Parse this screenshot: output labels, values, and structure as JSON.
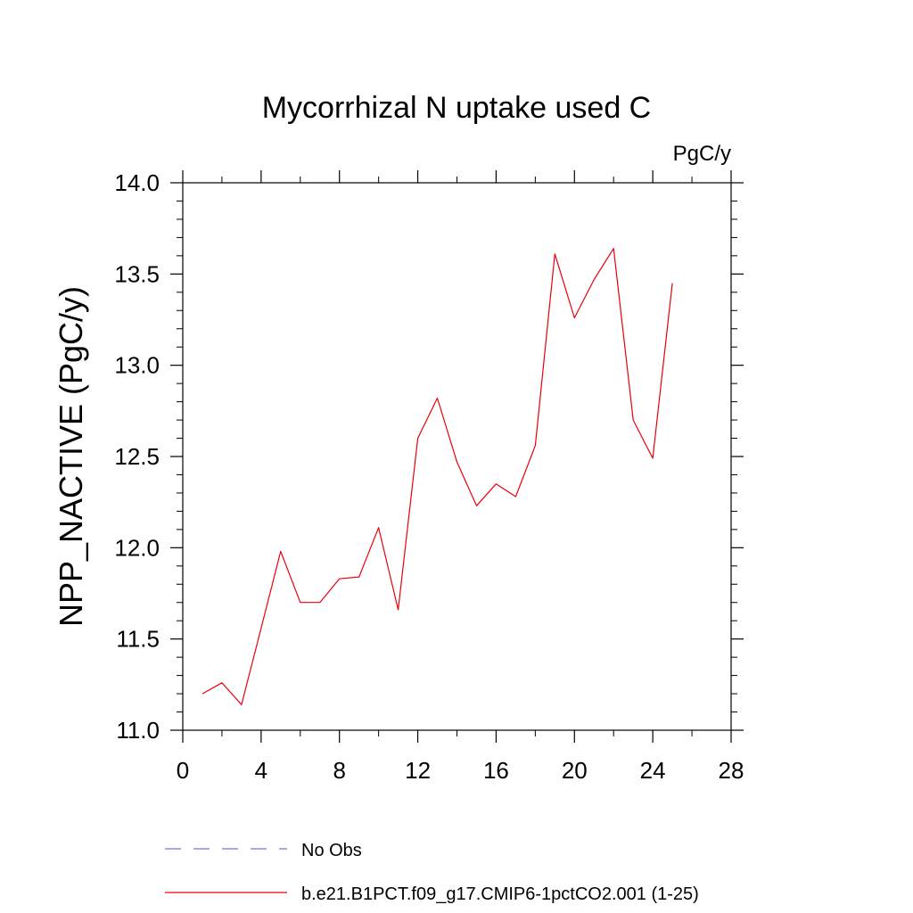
{
  "chart_data": {
    "type": "line",
    "title": "Mycorrhizal N uptake used C",
    "units_label": "PgC/y",
    "ylabel": "NPP_NACTIVE  (PgC/y)",
    "xlabel": "",
    "xlim": [
      0,
      28
    ],
    "ylim": [
      11.0,
      14.0
    ],
    "x_ticks": [
      0,
      4,
      8,
      12,
      16,
      20,
      24,
      28
    ],
    "x_tick_labels": [
      "0",
      "4",
      "8",
      "12",
      "16",
      "20",
      "24",
      "28"
    ],
    "y_ticks": [
      11.0,
      11.5,
      12.0,
      12.5,
      13.0,
      13.5,
      14.0
    ],
    "y_tick_labels": [
      "11.0",
      "11.5",
      "12.0",
      "12.5",
      "13.0",
      "13.5",
      "14.0"
    ],
    "grid": false,
    "legend_position": "bottom",
    "series": [
      {
        "name": "No Obs",
        "color": "#7a6fd0",
        "dash": "dashed",
        "x": [],
        "y": []
      },
      {
        "name": "b.e21.B1PCT.f09_g17.CMIP6-1pctCO2.001 (1-25)",
        "color": "#e8000b",
        "dash": "solid",
        "x": [
          1,
          2,
          3,
          4,
          5,
          6,
          7,
          8,
          9,
          10,
          11,
          12,
          13,
          14,
          15,
          16,
          17,
          18,
          19,
          20,
          21,
          22,
          23,
          24,
          25
        ],
        "y": [
          11.2,
          11.26,
          11.14,
          11.56,
          11.98,
          11.7,
          11.7,
          11.83,
          11.84,
          12.11,
          11.66,
          12.6,
          12.82,
          12.47,
          12.23,
          12.35,
          12.28,
          12.56,
          13.61,
          13.26,
          13.47,
          13.64,
          12.7,
          12.49,
          13.45
        ]
      }
    ]
  }
}
